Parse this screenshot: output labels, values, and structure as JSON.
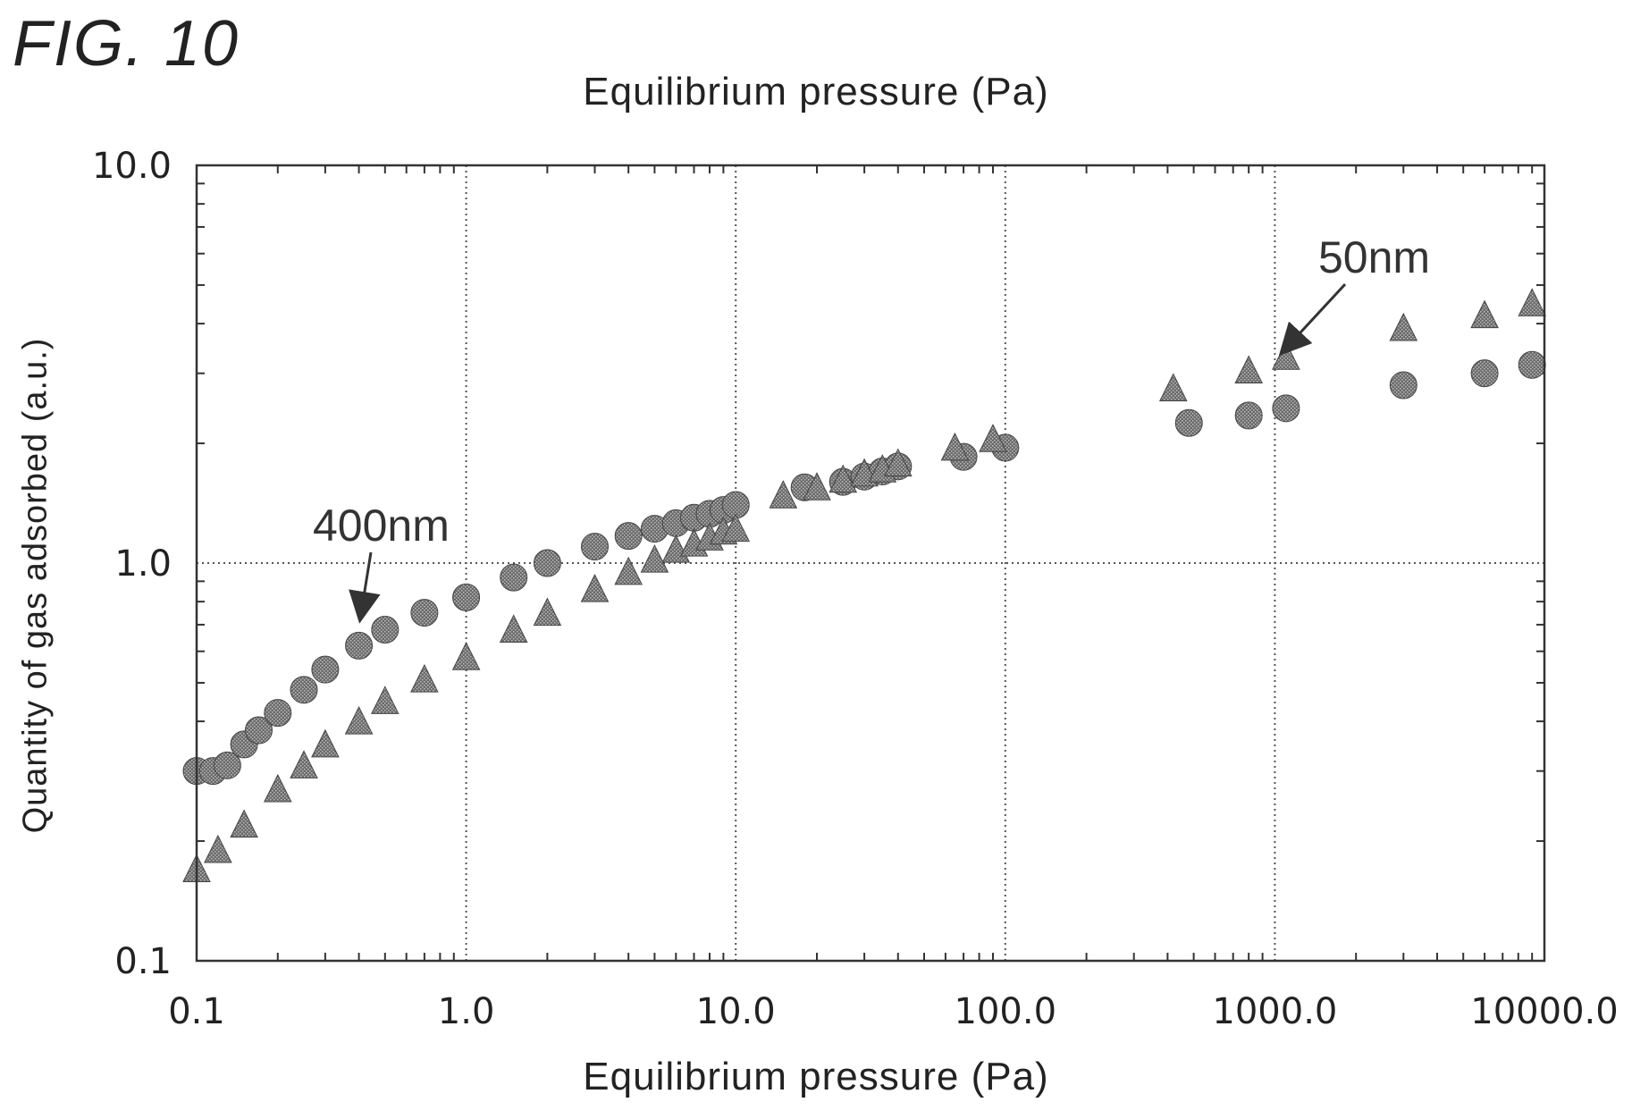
{
  "figure_label": "FIG. 10",
  "chart_data": {
    "type": "scatter",
    "title": "Equilibrium pressure (Pa)",
    "xlabel": "Equilibrium pressure (Pa)",
    "ylabel": "Quantity of gas adsorbed (a.u.)",
    "x_scale": "log",
    "y_scale": "log",
    "xlim": [
      0.1,
      10000
    ],
    "ylim": [
      0.1,
      10
    ],
    "x_ticks": [
      "0.1",
      "1.0",
      "10.0",
      "100.0",
      "1000.0",
      "10000.0"
    ],
    "y_ticks": [
      "0.1",
      "1.0",
      "10.0"
    ],
    "grid": true,
    "marker_color": "#5a5a5a",
    "series": [
      {
        "name": "400nm",
        "marker": "circle",
        "x": [
          0.1,
          0.115,
          0.13,
          0.15,
          0.17,
          0.2,
          0.25,
          0.3,
          0.4,
          0.5,
          0.7,
          1.0,
          1.5,
          2.0,
          3.0,
          4.0,
          5.0,
          6.0,
          7.0,
          8.0,
          9.0,
          10.0,
          18,
          25,
          30,
          35,
          40,
          70,
          100,
          480,
          800,
          1100,
          3000,
          6000,
          9000
        ],
        "y": [
          0.3,
          0.3,
          0.31,
          0.35,
          0.38,
          0.42,
          0.48,
          0.54,
          0.62,
          0.68,
          0.75,
          0.82,
          0.92,
          1.0,
          1.1,
          1.17,
          1.22,
          1.26,
          1.3,
          1.33,
          1.36,
          1.4,
          1.55,
          1.6,
          1.65,
          1.7,
          1.75,
          1.85,
          1.95,
          2.25,
          2.35,
          2.45,
          2.8,
          3.0,
          3.15
        ]
      },
      {
        "name": "50nm",
        "marker": "triangle",
        "x": [
          0.1,
          0.12,
          0.15,
          0.2,
          0.25,
          0.3,
          0.4,
          0.5,
          0.7,
          1.0,
          1.5,
          2.0,
          3.0,
          4.0,
          5.0,
          6.0,
          7.0,
          8.0,
          9.0,
          10.0,
          15,
          20,
          25,
          30,
          35,
          40,
          65,
          90,
          420,
          800,
          1100,
          3000,
          6000,
          9000
        ],
        "y": [
          0.17,
          0.19,
          0.22,
          0.27,
          0.31,
          0.35,
          0.4,
          0.45,
          0.51,
          0.58,
          0.68,
          0.75,
          0.86,
          0.95,
          1.02,
          1.08,
          1.12,
          1.16,
          1.2,
          1.22,
          1.48,
          1.55,
          1.62,
          1.68,
          1.72,
          1.78,
          1.95,
          2.05,
          2.75,
          3.05,
          3.3,
          3.9,
          4.2,
          4.5
        ]
      }
    ],
    "annotations": [
      {
        "text": "400nm",
        "series": "400nm"
      },
      {
        "text": "50nm",
        "series": "50nm"
      }
    ]
  }
}
